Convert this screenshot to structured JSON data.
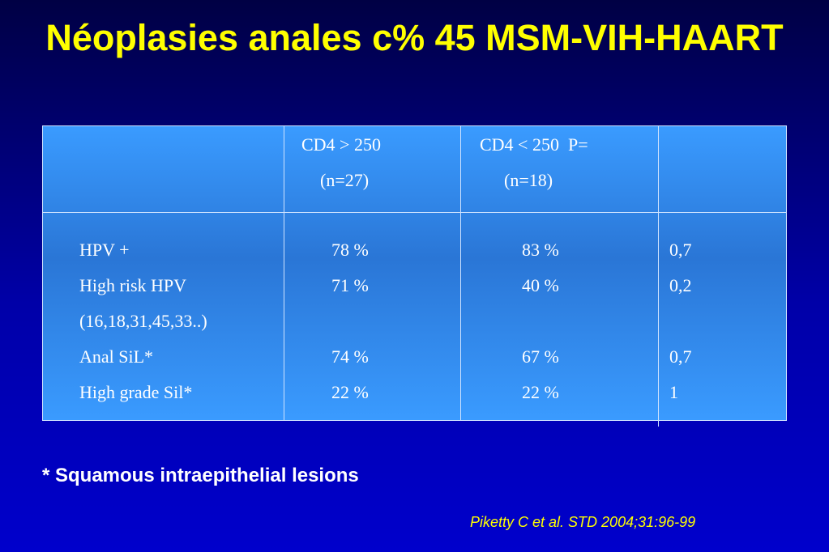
{
  "title": "Néoplasies anales c% 45 MSM-VIH-HAART",
  "table": {
    "header": [
      {
        "lines": [
          "CD4 > 250",
          "(n=27)"
        ]
      },
      {
        "lines": [
          "CD4 < 250  P=",
          "(n=18)"
        ]
      }
    ],
    "rows": [
      {
        "label": [
          "HPV +"
        ],
        "cd4_high": "78 %",
        "cd4_low": "83 %",
        "p": "0,7"
      },
      {
        "label": [
          "High risk HPV",
          "(16,18,31,45,33..)"
        ],
        "cd4_high": "71 %",
        "cd4_low": "40 %",
        "p": "0,2"
      },
      {
        "label": [
          "Anal SiL*"
        ],
        "cd4_high": "74 %",
        "cd4_low": "67 %",
        "p": "0,7"
      },
      {
        "label": [
          "High grade Sil*"
        ],
        "cd4_high": "22 %",
        "cd4_low": "22 %",
        "p": "1"
      }
    ]
  },
  "footnote": "* Squamous intraepithelial lesions",
  "citation": "Piketty C et al. STD 2004;31:96-99"
}
